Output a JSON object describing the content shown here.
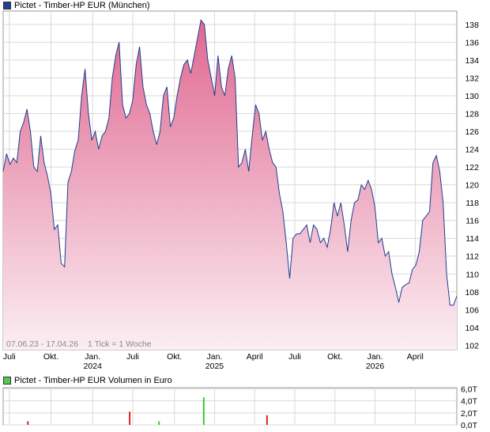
{
  "legend": {
    "price": {
      "label": "Pictet - Timber-HP EUR (München)",
      "color": "#1f3f8f"
    },
    "volume": {
      "label": "Pictet - Timber-HP EUR Volumen in Euro",
      "color": "#55c855"
    }
  },
  "info": {
    "range": "07.06.23 - 17.04.26",
    "tick": "1 Tick = 1 Woche"
  },
  "colors": {
    "line": "#1f3f8f",
    "fill_top": "#e06890",
    "fill_bottom": "#fbeef3",
    "vol_up": "#33cc33",
    "vol_down": "#dd2222",
    "grid": "#d9d9d9"
  },
  "chart_data": [
    {
      "type": "area",
      "title": "Pictet - Timber-HP EUR (München)",
      "ylim": [
        101.5,
        139.5
      ],
      "yticks": [
        102,
        104,
        106,
        108,
        110,
        112,
        114,
        116,
        118,
        120,
        122,
        124,
        126,
        128,
        130,
        132,
        134,
        136,
        138
      ],
      "xlim": [
        0,
        147
      ],
      "xticks": [
        {
          "x": 2,
          "label": "Juli",
          "year": ""
        },
        {
          "x": 15.5,
          "label": "Okt.",
          "year": ""
        },
        {
          "x": 29,
          "label": "Jan.",
          "year": "2024"
        },
        {
          "x": 42,
          "label": "Juli",
          "year": ""
        },
        {
          "x": 55.5,
          "label": "Okt.",
          "year": ""
        },
        {
          "x": 68.5,
          "label": "Jan.",
          "year": "2025"
        },
        {
          "x": 81.5,
          "label": "April",
          "year": ""
        },
        {
          "x": 94.5,
          "label": "Juli",
          "year": ""
        },
        {
          "x": 107.5,
          "label": "Okt.",
          "year": ""
        },
        {
          "x": 120.5,
          "label": "Jan.",
          "year": "2026"
        },
        {
          "x": 133.5,
          "label": "April",
          "year": ""
        }
      ],
      "series": [
        {
          "values": [
            121.5,
            123.5,
            122.3,
            123,
            122.5,
            126,
            127,
            128.5,
            126,
            122,
            121.5,
            125.5,
            122.5,
            121,
            119,
            115,
            115.5,
            111.2,
            110.8,
            120.3,
            121.5,
            123.8,
            125,
            130,
            133,
            128,
            125,
            126,
            124,
            125.5,
            126,
            127.5,
            132,
            134.5,
            136,
            129,
            127.5,
            128,
            129.5,
            133.5,
            135.5,
            131,
            129,
            128,
            126,
            124.5,
            126,
            130,
            131,
            126.5,
            127.5,
            130,
            132,
            133.5,
            134,
            132.5,
            134.5,
            136.5,
            138.5,
            138,
            134,
            132,
            130,
            134.5,
            131,
            130,
            133,
            134.5,
            132,
            122,
            122.5,
            124,
            121.5,
            125.5,
            129,
            128,
            125,
            126,
            124,
            122.5,
            122,
            119,
            117,
            113.5,
            109.5,
            114,
            114.5,
            114.5,
            115,
            115.5,
            113.5,
            115.5,
            115,
            113.5,
            114,
            113,
            115,
            118,
            116.5,
            118,
            115.5,
            112.5,
            116,
            118,
            118.3,
            120,
            119.5,
            120.5,
            119.5,
            117.5,
            113.5,
            114,
            112,
            112.5,
            110,
            108.5,
            106.8,
            108.5,
            108.8,
            109,
            110.5,
            111,
            112.5,
            116,
            116.5,
            117,
            122.5,
            123.3,
            121.5,
            118,
            110,
            106.5,
            106.5,
            107.5
          ]
        }
      ]
    },
    {
      "type": "bar",
      "title": "Pictet - Timber-HP EUR Volumen in Euro",
      "ylim": [
        0,
        6.2
      ],
      "yticks": [
        "0,0T",
        "2,0T",
        "4,0T",
        "6,0T"
      ],
      "bars": [
        {
          "x": 8,
          "value": 0.6,
          "direction": "down"
        },
        {
          "x": 41,
          "value": 2.2,
          "direction": "down"
        },
        {
          "x": 50.5,
          "value": 0.6,
          "direction": "up"
        },
        {
          "x": 65,
          "value": 4.6,
          "direction": "up"
        },
        {
          "x": 85.5,
          "value": 1.6,
          "direction": "down"
        }
      ]
    }
  ]
}
